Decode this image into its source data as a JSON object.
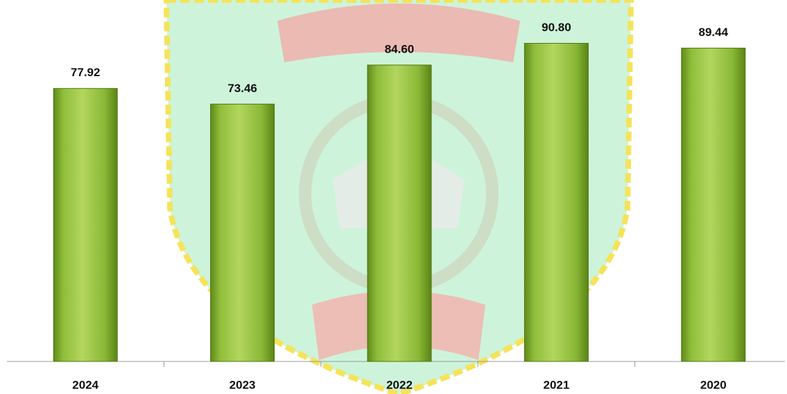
{
  "chart_data": {
    "type": "bar",
    "categories": [
      "2024",
      "2023",
      "2022",
      "2021",
      "2020"
    ],
    "values": [
      77.92,
      73.46,
      84.6,
      90.8,
      89.44
    ],
    "value_labels": [
      "77.92",
      "73.46",
      "84.60",
      "90.80",
      "89.44"
    ],
    "color": "#8cbf2e"
  }
}
